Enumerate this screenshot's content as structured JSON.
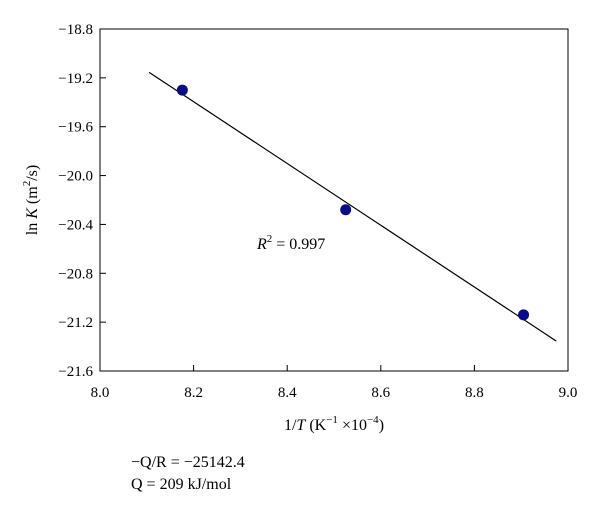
{
  "chart_data": {
    "type": "scatter",
    "x": [
      8.176,
      8.525,
      8.905
    ],
    "y": [
      -19.3,
      -20.28,
      -21.14
    ],
    "xlim": [
      8.0,
      9.0
    ],
    "ylim": [
      -21.6,
      -18.8
    ],
    "xticks": [
      "8.0",
      "8.2",
      "8.4",
      "8.6",
      "8.8",
      "9.0"
    ],
    "yticks": [
      "−18.8",
      "−19.2",
      "−19.6",
      "−20.0",
      "−20.4",
      "−20.8",
      "−21.2",
      "−21.6"
    ],
    "xtick_values": [
      8.0,
      8.2,
      8.4,
      8.6,
      8.8,
      9.0
    ],
    "ytick_values": [
      -18.8,
      -19.2,
      -19.6,
      -20.0,
      -20.4,
      -20.8,
      -21.2,
      -21.6
    ],
    "fit_line": {
      "x": [
        8.105,
        8.975
      ],
      "y": [
        -19.155,
        -21.355
      ]
    },
    "xlabel": "1/T (K⁻¹ ×10⁻⁴)",
    "ylabel": "ln K (m²/s)",
    "annotation": "R² = 0.997",
    "marker_color": "#0a0a8c",
    "grid": false
  },
  "notes": {
    "line1": "−Q/R = −25142.4",
    "line2": "Q = 209 kJ/mol"
  }
}
